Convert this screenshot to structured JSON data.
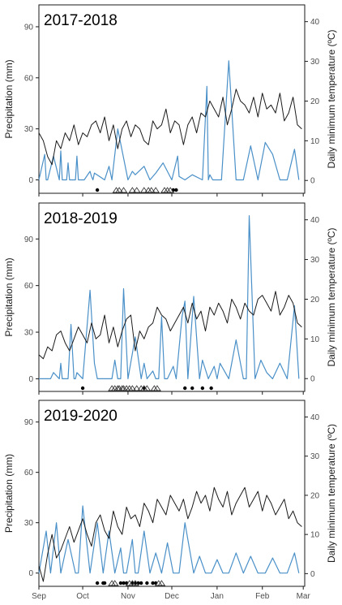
{
  "colors": {
    "precipitation": "#4a90c8",
    "temperature": "#1a1a1a",
    "frame": "#1a1a1a",
    "tick_text": "#4d4d4d"
  },
  "chart_data": [
    {
      "type": "line",
      "title": "2017-2018",
      "ylabel_left": "Precipitation (mm)",
      "ylabel_right": "Daily minimum temperature (ºC)",
      "ylim_left": [
        -5,
        100
      ],
      "ylim_right": [
        -2,
        43
      ],
      "yticks_left": [
        0,
        30,
        60,
        90
      ],
      "yticks_right": [
        0,
        10,
        20,
        30,
        40
      ],
      "series": [
        {
          "name": "precipitation",
          "x": [
            0,
            4,
            5,
            6,
            10,
            14,
            15,
            16,
            19,
            20,
            21,
            25,
            26,
            27,
            31,
            35,
            36,
            37,
            38,
            45,
            48,
            50,
            54,
            61,
            64,
            66,
            72,
            76,
            80,
            85,
            91,
            95,
            96,
            100,
            105,
            112,
            115,
            116,
            117,
            119,
            125,
            130,
            135,
            140,
            145,
            150,
            155,
            160,
            165,
            170,
            175,
            178
          ],
          "values": [
            0,
            15,
            0,
            0,
            14,
            0,
            17,
            0,
            0,
            10,
            0,
            0,
            14,
            0,
            0,
            5,
            2,
            0,
            4,
            0,
            8,
            0,
            30,
            0,
            5,
            3,
            8,
            0,
            4,
            10,
            0,
            14,
            2,
            0,
            3,
            0,
            55,
            0,
            3,
            0,
            0,
            70,
            0,
            0,
            20,
            0,
            22,
            15,
            0,
            0,
            18,
            0
          ]
        },
        {
          "name": "temperature",
          "x": [
            0,
            3,
            6,
            9,
            12,
            15,
            18,
            21,
            24,
            27,
            30,
            33,
            36,
            39,
            42,
            45,
            48,
            51,
            54,
            57,
            60,
            63,
            66,
            69,
            72,
            75,
            78,
            81,
            84,
            87,
            90,
            93,
            96,
            99,
            102,
            105,
            108,
            111,
            114,
            117,
            120,
            123,
            126,
            129,
            132,
            135,
            138,
            141,
            144,
            147,
            150,
            153,
            156,
            159,
            162,
            165,
            168,
            171,
            174,
            177,
            180
          ],
          "values": [
            12,
            10,
            6,
            4,
            10,
            8,
            12,
            10,
            14,
            9,
            12,
            11,
            14,
            15,
            12,
            16,
            10,
            14,
            8,
            13,
            15,
            11,
            14,
            13,
            10,
            9,
            15,
            13,
            14,
            18,
            12,
            15,
            14,
            9,
            14,
            16,
            12,
            17,
            16,
            20,
            18,
            16,
            21,
            14,
            18,
            23,
            20,
            19,
            17,
            21,
            16,
            22,
            18,
            19,
            17,
            22,
            15,
            17,
            21,
            14,
            13
          ]
        }
      ],
      "events": [
        {
          "type": "filled_circle",
          "x": [
            40,
            92,
            94
          ]
        },
        {
          "type": "open_triangle",
          "x": [
            53,
            55,
            58,
            64,
            67,
            72,
            75,
            77,
            80,
            86,
            88,
            90
          ]
        }
      ]
    },
    {
      "type": "line",
      "title": "2018-2019",
      "ylabel_left": "Precipitation (mm)",
      "ylabel_right": "Daily minimum temperature (ºC)",
      "ylim_left": [
        -5,
        110
      ],
      "ylim_right": [
        -2,
        43
      ],
      "yticks_left": [
        0,
        30,
        60,
        90
      ],
      "yticks_right": [
        0,
        10,
        20,
        30,
        40
      ],
      "series": [
        {
          "name": "precipitation",
          "x": [
            0,
            8,
            10,
            14,
            15,
            16,
            20,
            22,
            24,
            25,
            26,
            30,
            35,
            38,
            40,
            45,
            50,
            52,
            54,
            56,
            58,
            61,
            66,
            70,
            72,
            74,
            78,
            80,
            82,
            84,
            86,
            88,
            92,
            94,
            98,
            100,
            102,
            106,
            110,
            112,
            116,
            120,
            122,
            124,
            130,
            135,
            140,
            142,
            144,
            148,
            152,
            156,
            160,
            165,
            170,
            175,
            178
          ],
          "values": [
            0,
            0,
            4,
            0,
            10,
            0,
            0,
            35,
            0,
            0,
            4,
            0,
            57,
            10,
            0,
            0,
            0,
            12,
            0,
            0,
            58,
            0,
            27,
            0,
            10,
            0,
            5,
            0,
            0,
            40,
            0,
            0,
            8,
            0,
            40,
            50,
            0,
            53,
            0,
            12,
            0,
            8,
            0,
            10,
            0,
            25,
            0,
            0,
            105,
            0,
            12,
            4,
            0,
            10,
            0,
            47,
            0
          ]
        },
        {
          "name": "temperature",
          "x": [
            0,
            3,
            6,
            9,
            12,
            15,
            18,
            21,
            24,
            27,
            30,
            33,
            36,
            39,
            42,
            45,
            48,
            51,
            54,
            57,
            60,
            63,
            66,
            69,
            72,
            75,
            78,
            81,
            84,
            87,
            90,
            93,
            96,
            99,
            102,
            105,
            108,
            111,
            114,
            117,
            120,
            123,
            126,
            129,
            132,
            135,
            138,
            141,
            144,
            147,
            150,
            153,
            156,
            159,
            162,
            165,
            168,
            171,
            174,
            177,
            180
          ],
          "values": [
            6,
            5,
            8,
            7,
            11,
            12,
            9,
            7,
            10,
            13,
            11,
            9,
            14,
            10,
            11,
            16,
            9,
            13,
            8,
            12,
            15,
            16,
            7,
            12,
            10,
            13,
            14,
            18,
            16,
            15,
            12,
            14,
            16,
            18,
            14,
            19,
            15,
            17,
            12,
            18,
            16,
            19,
            17,
            14,
            20,
            18,
            15,
            19,
            17,
            16,
            20,
            21,
            19,
            17,
            22,
            16,
            18,
            21,
            19,
            14,
            13
          ]
        }
      ],
      "events": [
        {
          "type": "filled_circle",
          "x": [
            30,
            72,
            100,
            105,
            112,
            118
          ]
        },
        {
          "type": "open_triangle",
          "x": [
            50,
            52,
            54,
            55,
            57,
            58,
            60,
            62,
            64,
            67,
            70,
            72,
            74,
            79,
            81
          ]
        }
      ]
    },
    {
      "type": "line",
      "title": "2019-2020",
      "ylabel_left": "Precipitation (mm)",
      "ylabel_right": "Daily minimum temperature (ºC)",
      "ylim_left": [
        -5,
        100
      ],
      "ylim_right": [
        -2,
        43
      ],
      "yticks_left": [
        0,
        30,
        60,
        90
      ],
      "yticks_right": [
        0,
        10,
        20,
        30,
        40
      ],
      "series": [
        {
          "name": "precipitation",
          "x": [
            0,
            5,
            8,
            12,
            15,
            20,
            25,
            27,
            30,
            35,
            40,
            44,
            48,
            52,
            56,
            58,
            60,
            64,
            66,
            68,
            72,
            76,
            80,
            84,
            88,
            92,
            96,
            100,
            106,
            110,
            114,
            118,
            122,
            126,
            130,
            135,
            140,
            145,
            150,
            155,
            160,
            165,
            170,
            175,
            178
          ],
          "values": [
            0,
            25,
            0,
            30,
            0,
            20,
            0,
            0,
            40,
            0,
            30,
            0,
            25,
            0,
            15,
            0,
            0,
            20,
            0,
            0,
            25,
            0,
            12,
            0,
            18,
            0,
            0,
            30,
            0,
            10,
            0,
            0,
            8,
            0,
            0,
            12,
            0,
            10,
            0,
            0,
            9,
            0,
            0,
            12,
            0
          ]
        },
        {
          "name": "temperature",
          "x": [
            0,
            3,
            6,
            9,
            12,
            15,
            18,
            21,
            24,
            27,
            30,
            33,
            36,
            39,
            42,
            45,
            48,
            51,
            54,
            57,
            60,
            63,
            66,
            69,
            72,
            75,
            78,
            81,
            84,
            87,
            90,
            93,
            96,
            99,
            102,
            105,
            108,
            111,
            114,
            117,
            120,
            123,
            126,
            129,
            132,
            135,
            138,
            141,
            144,
            147,
            150,
            153,
            156,
            159,
            162,
            165,
            168,
            171,
            174,
            177,
            180
          ],
          "values": [
            2,
            -2,
            5,
            10,
            4,
            6,
            9,
            12,
            8,
            11,
            14,
            10,
            7,
            13,
            15,
            11,
            9,
            16,
            12,
            10,
            17,
            14,
            15,
            12,
            18,
            16,
            13,
            19,
            17,
            15,
            20,
            18,
            16,
            19,
            14,
            17,
            21,
            18,
            20,
            16,
            22,
            19,
            17,
            21,
            15,
            18,
            20,
            22,
            17,
            19,
            21,
            16,
            20,
            18,
            15,
            17,
            19,
            14,
            16,
            13,
            12
          ]
        }
      ],
      "events": [
        {
          "type": "filled_circle",
          "x": [
            40,
            44,
            45,
            56,
            58,
            60,
            64,
            66,
            68,
            70,
            74,
            78,
            80
          ]
        },
        {
          "type": "open_triangle",
          "x": [
            50,
            52,
            62,
            64,
            66,
            82,
            84
          ]
        }
      ]
    }
  ],
  "x_axis": {
    "label": "",
    "range": [
      0,
      182
    ],
    "ticks": [
      {
        "label": "Sep",
        "x": 0
      },
      {
        "label": "Oct",
        "x": 30
      },
      {
        "label": "Nov",
        "x": 61
      },
      {
        "label": "Dec",
        "x": 91
      },
      {
        "label": "Jan",
        "x": 122
      },
      {
        "label": "Feb",
        "x": 153
      },
      {
        "label": "Mar",
        "x": 181
      }
    ]
  }
}
